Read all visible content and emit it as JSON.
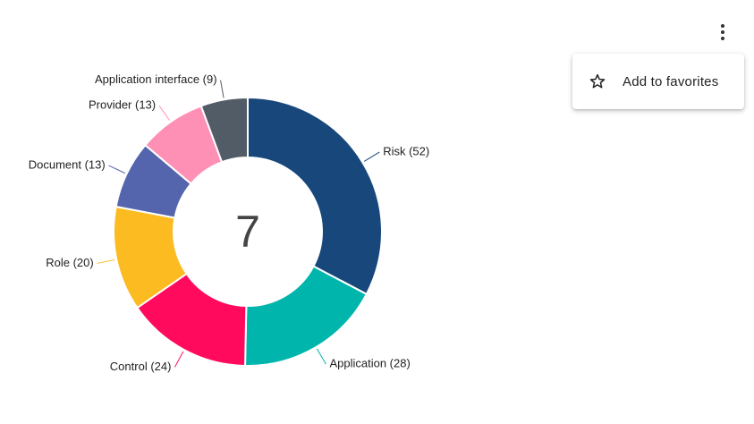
{
  "chart_data": {
    "type": "pie",
    "donut": true,
    "center_value": "7",
    "slices": [
      {
        "label": "Risk",
        "value": 52,
        "display": "Risk (52)",
        "color": "#17477b"
      },
      {
        "label": "Application",
        "value": 28,
        "display": "Application (28)",
        "color": "#00b5ac"
      },
      {
        "label": "Control",
        "value": 24,
        "display": "Control (24)",
        "color": "#ff0a5c"
      },
      {
        "label": "Role",
        "value": 20,
        "display": "Role (20)",
        "color": "#fbbb21"
      },
      {
        "label": "Document",
        "value": 13,
        "display": "Document (13)",
        "color": "#5465ad"
      },
      {
        "label": "Provider",
        "value": 13,
        "display": "Provider (13)",
        "color": "#ff90b5"
      },
      {
        "label": "Application interface",
        "value": 9,
        "display": "Application interface (9)",
        "color": "#525c67"
      }
    ]
  },
  "menu": {
    "more_icon": "more-vert-icon",
    "items": [
      {
        "icon": "star-outline-icon",
        "label": "Add to favorites"
      }
    ]
  }
}
